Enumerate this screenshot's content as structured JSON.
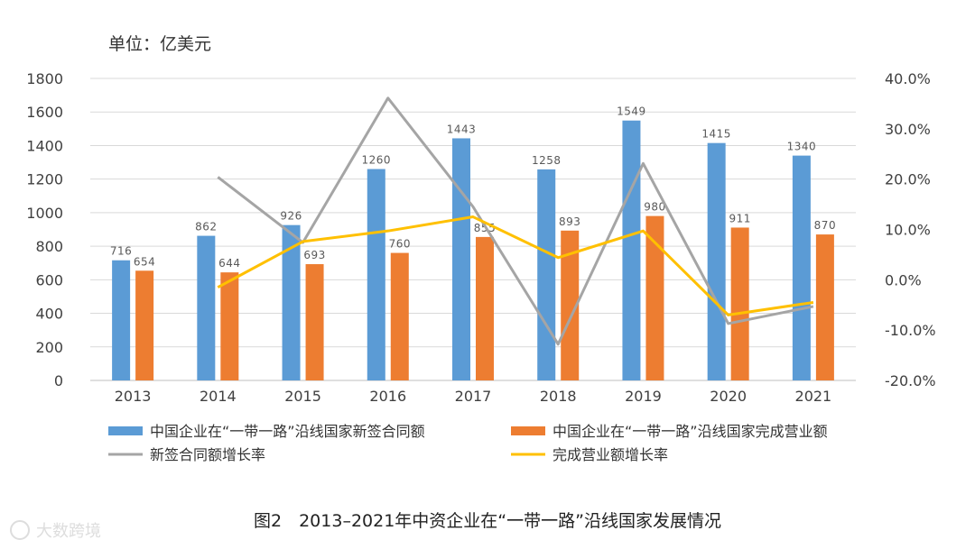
{
  "unit_label": "单位：亿美元",
  "caption": "图2　2013–2021年中资企业在“一带一路”沿线国家发展情况",
  "watermark": "大数跨境",
  "colors": {
    "new_contracts": "#5B9BD5",
    "completed_turnover": "#ED7D31",
    "new_contract_growth": "#A5A5A5",
    "turnover_growth": "#FFC000",
    "grid": "#d9d9d9"
  },
  "chart_data": {
    "type": "bar",
    "title": "2013–2021年中资企业在“一带一路”沿线国家发展情况",
    "categories": [
      "2013",
      "2014",
      "2015",
      "2016",
      "2017",
      "2018",
      "2019",
      "2020",
      "2021"
    ],
    "y_left": {
      "ylim": [
        0,
        1800
      ],
      "ticks": [
        "0",
        "200",
        "400",
        "600",
        "800",
        "1000",
        "1200",
        "1400",
        "1600",
        "1800"
      ]
    },
    "y_right": {
      "ylim": [
        -20,
        40
      ],
      "ticks": [
        "-20.0%",
        "-10.0%",
        "0.0%",
        "10.0%",
        "20.0%",
        "30.0%",
        "40.0%"
      ]
    },
    "series": [
      {
        "name": "中国企业在“一带一路”沿线国家新签合同额",
        "type": "bar",
        "axis": "left",
        "values": [
          716,
          862,
          926,
          1260,
          1443,
          1258,
          1549,
          1415,
          1340
        ]
      },
      {
        "name": "中国企业在“一带一路”沿线国家完成营业额",
        "type": "bar",
        "axis": "left",
        "values": [
          654,
          644,
          693,
          760,
          855,
          893,
          980,
          911,
          870
        ]
      },
      {
        "name": "新签合同额增长率",
        "type": "line",
        "axis": "right",
        "values": [
          null,
          20.4,
          7.4,
          36.1,
          14.5,
          -12.8,
          23.1,
          -8.7,
          -5.3
        ]
      },
      {
        "name": "完成营业额增长率",
        "type": "line",
        "axis": "right",
        "values": [
          null,
          -1.5,
          7.6,
          9.7,
          12.5,
          4.4,
          9.7,
          -7.0,
          -4.5
        ]
      }
    ]
  }
}
